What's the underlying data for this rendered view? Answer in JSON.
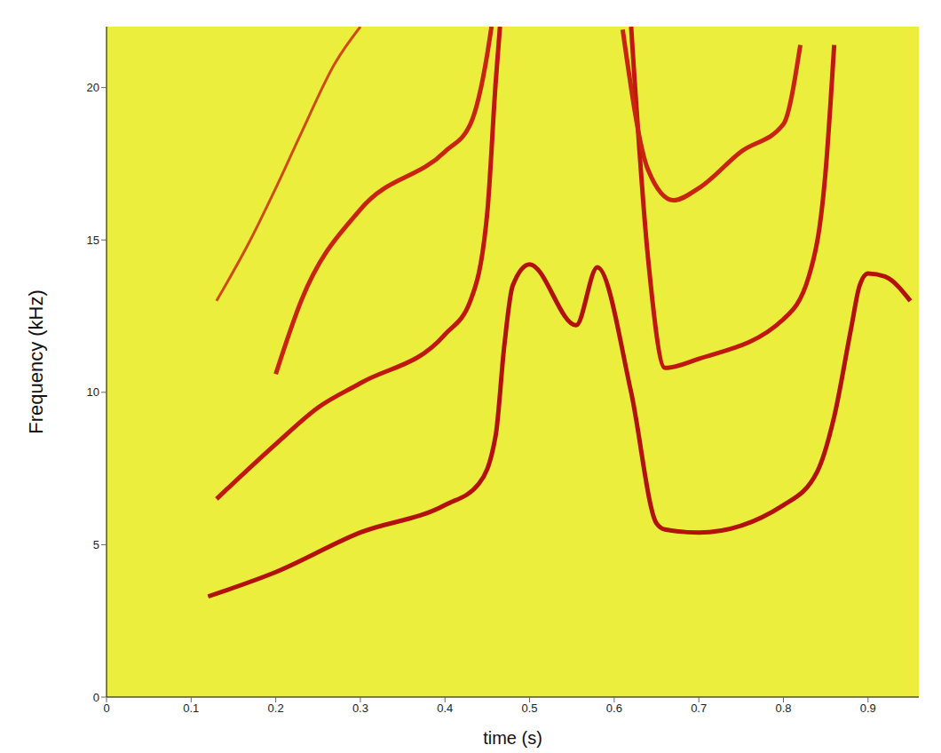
{
  "chart_data": {
    "type": "line",
    "x_label": "time (s)",
    "y_label": "Frequency (kHz)",
    "xlim": [
      0,
      0.96
    ],
    "ylim": [
      0,
      22
    ],
    "xticks": [
      0,
      0.1,
      0.2,
      0.3,
      0.4,
      0.5,
      0.6,
      0.7,
      0.8,
      0.9
    ],
    "yticks": [
      0,
      5,
      10,
      15,
      20
    ],
    "grid": false,
    "series": [
      {
        "color": "#b3120c",
        "x": [
          0.12,
          0.2,
          0.3,
          0.4,
          0.44,
          0.46,
          0.47,
          0.48,
          0.5,
          0.555,
          0.58,
          0.62,
          0.65,
          0.66,
          0.7,
          0.8,
          0.84,
          0.86,
          0.88,
          0.89,
          0.9,
          0.92,
          0.95
        ],
        "values": [
          3.3,
          4.1,
          5.4,
          6.3,
          7.0,
          8.6,
          11.5,
          13.5,
          14.2,
          12.2,
          14.1,
          10.0,
          5.7,
          5.5,
          5.4,
          6.3,
          7.4,
          9.2,
          12.1,
          13.5,
          13.9,
          13.8,
          13.0
        ]
      },
      {
        "color": "#c0180e",
        "x": [
          0.13,
          0.2,
          0.25,
          0.3,
          0.4,
          0.43,
          0.45,
          0.46,
          0.465,
          0.54,
          0.62,
          0.64,
          0.66,
          0.7,
          0.8,
          0.83,
          0.85,
          0.86
        ],
        "values": [
          6.5,
          8.3,
          9.5,
          10.3,
          11.9,
          13.0,
          15.9,
          20.2,
          22,
          null,
          22,
          14.4,
          10.8,
          11.1,
          12.4,
          13.8,
          17.3,
          21.4
        ]
      },
      {
        "color": "#c8240f",
        "x": [
          0.2,
          0.23,
          0.3,
          0.4,
          0.43,
          0.45,
          0.455,
          0.53,
          0.61,
          0.64,
          0.67,
          0.7,
          0.75,
          0.8,
          0.82
        ],
        "values": [
          10.6,
          13.0,
          16.0,
          17.9,
          18.8,
          21.1,
          22,
          null,
          21.9,
          17.3,
          16.3,
          16.7,
          17.9,
          18.8,
          21.4
        ]
      },
      {
        "color": "#d04a14",
        "x": [
          0.13,
          0.17,
          0.2,
          0.23,
          0.27,
          0.3
        ],
        "values": [
          13.0,
          15.0,
          16.7,
          18.5,
          20.8,
          22
        ]
      }
    ]
  }
}
